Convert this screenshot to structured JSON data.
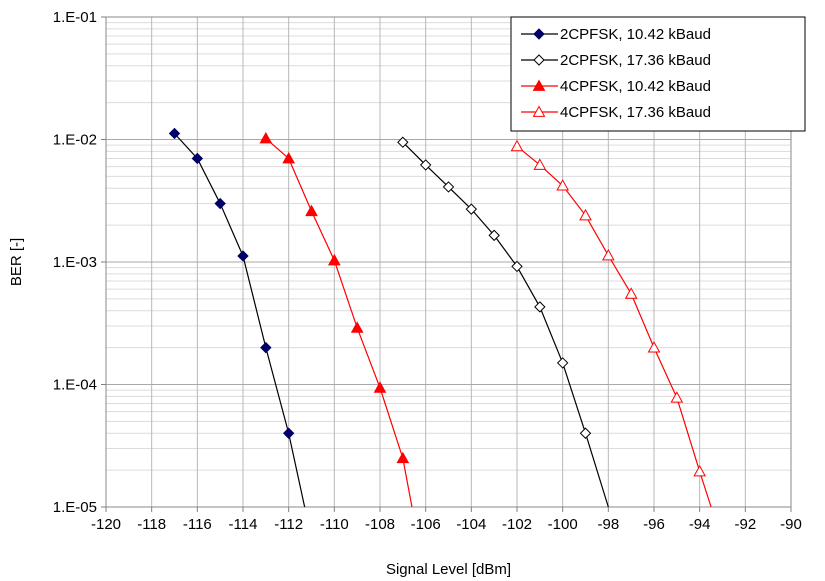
{
  "chart_data": {
    "type": "line",
    "xlabel": "Signal Level [dBm]",
    "ylabel": "BER [-]",
    "xlim": [
      -120,
      -90
    ],
    "ylim": [
      1e-05,
      0.1
    ],
    "yscale": "log",
    "x_ticks": [
      "-120",
      "-118",
      "-116",
      "-114",
      "-112",
      "-110",
      "-108",
      "-106",
      "-104",
      "-102",
      "-100",
      "-98",
      "-96",
      "-94",
      "-92",
      "-90"
    ],
    "y_ticks": [
      "1.E-01",
      "1.E-02",
      "1.E-03",
      "1.E-04",
      "1.E-05"
    ],
    "grid": true,
    "legend_position": "top-right",
    "series": [
      {
        "name": "2CPFSK, 10.42 kBaud",
        "color": "#000000",
        "marker_color": "#000066",
        "marker": "diamond-filled",
        "points": [
          {
            "x": -117,
            "y": 0.0112
          },
          {
            "x": -116,
            "y": 0.007
          },
          {
            "x": -115,
            "y": 0.003
          },
          {
            "x": -114,
            "y": 0.00112
          },
          {
            "x": -113,
            "y": 0.0002
          },
          {
            "x": -112,
            "y": 4e-05
          }
        ],
        "line_extension": {
          "x": -111.3,
          "y": 1e-05
        }
      },
      {
        "name": "2CPFSK, 17.36 kBaud",
        "color": "#000000",
        "marker_color": "#000000",
        "marker": "diamond-open",
        "points": [
          {
            "x": -107,
            "y": 0.0095
          },
          {
            "x": -106,
            "y": 0.0062
          },
          {
            "x": -105,
            "y": 0.0041
          },
          {
            "x": -104,
            "y": 0.0027
          },
          {
            "x": -103,
            "y": 0.00165
          },
          {
            "x": -102,
            "y": 0.00092
          },
          {
            "x": -101,
            "y": 0.00043
          },
          {
            "x": -100,
            "y": 0.00015
          },
          {
            "x": -99,
            "y": 4e-05
          }
        ],
        "line_extension": {
          "x": -98,
          "y": 1e-05
        }
      },
      {
        "name": "4CPFSK, 10.42 kBaud",
        "color": "#ff0000",
        "marker_color": "#ff0000",
        "marker": "triangle-filled",
        "points": [
          {
            "x": -113,
            "y": 0.0102
          },
          {
            "x": -112,
            "y": 0.007
          },
          {
            "x": -111,
            "y": 0.0026
          },
          {
            "x": -110,
            "y": 0.00103
          },
          {
            "x": -109,
            "y": 0.00029
          },
          {
            "x": -108,
            "y": 9.4e-05
          },
          {
            "x": -107,
            "y": 2.5e-05
          }
        ],
        "line_extension": {
          "x": -106.6,
          "y": 1e-05
        }
      },
      {
        "name": "4CPFSK, 17.36 kBaud",
        "color": "#ff0000",
        "marker_color": "#ff0000",
        "marker": "triangle-open",
        "points": [
          {
            "x": -102,
            "y": 0.0088
          },
          {
            "x": -101,
            "y": 0.0062
          },
          {
            "x": -100,
            "y": 0.0042
          },
          {
            "x": -99,
            "y": 0.0024
          },
          {
            "x": -98,
            "y": 0.00113
          },
          {
            "x": -97,
            "y": 0.00055
          },
          {
            "x": -96,
            "y": 0.0002
          },
          {
            "x": -95,
            "y": 7.8e-05
          },
          {
            "x": -94,
            "y": 1.95e-05
          }
        ],
        "line_extension": {
          "x": -93.5,
          "y": 1e-05
        }
      }
    ]
  }
}
